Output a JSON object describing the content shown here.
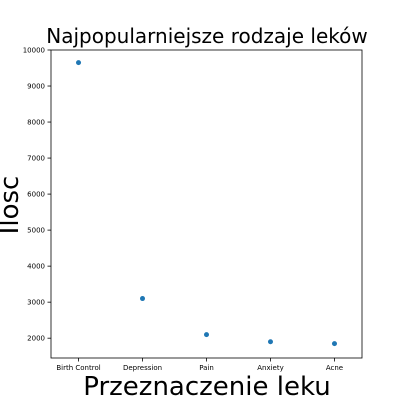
{
  "chart_data": {
    "type": "scatter",
    "title": "Najpopularniejsze rodzaje leków",
    "xlabel": "Przeznaczenie leku",
    "ylabel": "Ilosc",
    "categories": [
      "Birth Control",
      "Depression",
      "Pain",
      "Anxiety",
      "Acne"
    ],
    "values": [
      9650,
      3100,
      2100,
      1900,
      1850
    ],
    "ylim": [
      1450,
      10000
    ],
    "yticks": [
      2000,
      3000,
      4000,
      5000,
      6000,
      7000,
      8000,
      9000,
      10000
    ],
    "grid": false,
    "marker_color": "#1f77b4"
  }
}
